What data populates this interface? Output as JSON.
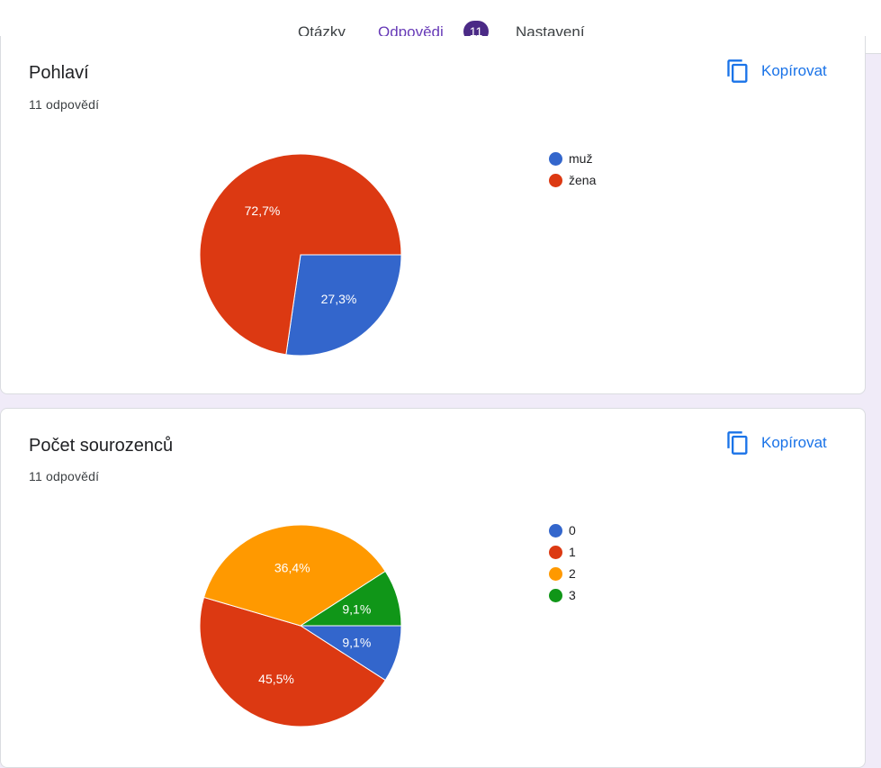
{
  "tabs": [
    {
      "label": "Otázky",
      "active": false
    },
    {
      "label": "Odpovědi",
      "active": true,
      "badge": "11"
    },
    {
      "label": "Nastavení",
      "active": false
    }
  ],
  "copy_label": "Kopírovat",
  "cards": [
    {
      "title": "Pohlaví",
      "responses": "11 odpovědí",
      "chart_data": {
        "type": "pie",
        "categories": [
          "muž",
          "žena"
        ],
        "values": [
          27.3,
          72.7
        ],
        "labels": [
          "27,3%",
          "72,7%"
        ],
        "colors": [
          "#3366cc",
          "#dc3912"
        ],
        "legend_position": "right"
      }
    },
    {
      "title": "Počet sourozenců",
      "responses": "11 odpovědí",
      "chart_data": {
        "type": "pie",
        "categories": [
          "0",
          "1",
          "2",
          "3"
        ],
        "values": [
          9.1,
          45.5,
          36.4,
          9.1
        ],
        "labels": [
          "9,1%",
          "45,5%",
          "36,4%",
          "9,1%"
        ],
        "colors": [
          "#3366cc",
          "#dc3912",
          "#ff9900",
          "#109618"
        ],
        "legend_position": "right"
      }
    }
  ]
}
